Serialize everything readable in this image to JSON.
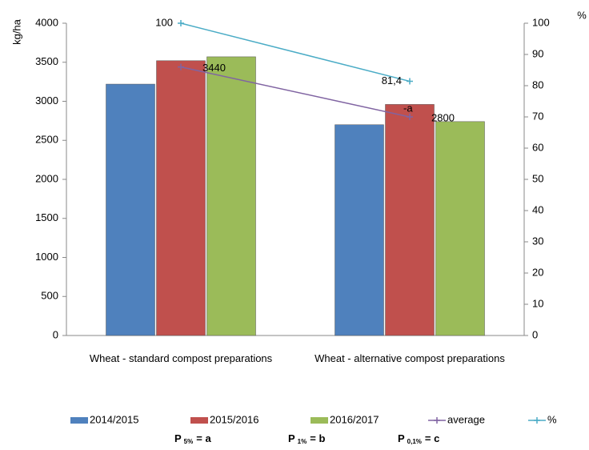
{
  "chart_data": {
    "type": "bar",
    "y_label": "kg/ha",
    "y2_label": "%",
    "categories": [
      "Wheat - standard compost preparations",
      "Wheat - alternative compost preparations"
    ],
    "series": [
      {
        "name": "2014/2015",
        "type": "bar",
        "color": "#4f81bd",
        "values": [
          3220,
          2700
        ]
      },
      {
        "name": "2015/2016",
        "type": "bar",
        "color": "#c0504d",
        "values": [
          3520,
          2960
        ]
      },
      {
        "name": "2016/2017",
        "type": "bar",
        "color": "#9bbb59",
        "values": [
          3570,
          2740
        ]
      },
      {
        "name": "average",
        "type": "line",
        "color": "#8064a2",
        "values": [
          3440,
          2800
        ],
        "value_labels": [
          "3440",
          "2800"
        ]
      },
      {
        "name": "%",
        "type": "line",
        "axis": "y2",
        "color": "#4bacc6",
        "values": [
          100,
          81.4
        ],
        "value_labels": [
          "100",
          "81,4"
        ]
      }
    ],
    "annotations": [
      "-a"
    ],
    "notes": [
      {
        "label": "P",
        "sub": "5%",
        "text": "= a"
      },
      {
        "label": "P",
        "sub": "1%",
        "text": "= b"
      },
      {
        "label": "P",
        "sub": "0,1%",
        "text": "= c"
      }
    ],
    "ylim": [
      0,
      4000
    ],
    "yticks": [
      0,
      500,
      1000,
      1500,
      2000,
      2500,
      3000,
      3500,
      4000
    ],
    "y2lim": [
      0,
      100
    ],
    "y2ticks": [
      0,
      10,
      20,
      30,
      40,
      50,
      60,
      70,
      80,
      90,
      100
    ]
  }
}
